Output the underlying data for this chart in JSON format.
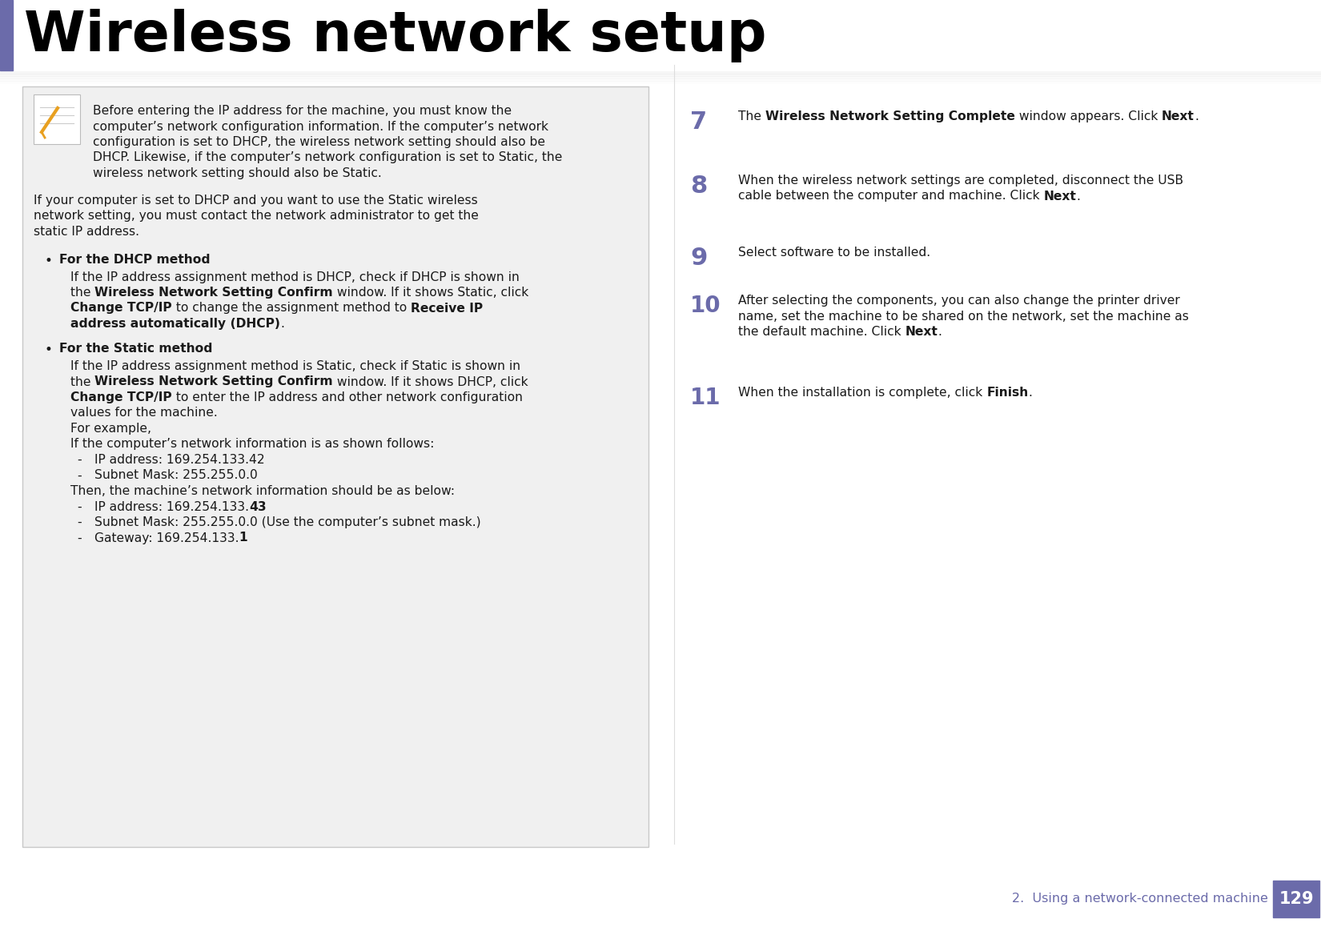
{
  "title": "Wireless network setup",
  "title_color": "#000000",
  "title_left_bar_color": "#6b6baa",
  "page_bg": "#ffffff",
  "footer_text": "2.  Using a network-connected machine",
  "footer_page": "129",
  "footer_color": "#6b6baa",
  "text_color": "#1a1a1a",
  "step_num_color": "#6b6baa",
  "note_box_bg": "#f0f0f0",
  "note_box_border": "#c8c8c8"
}
